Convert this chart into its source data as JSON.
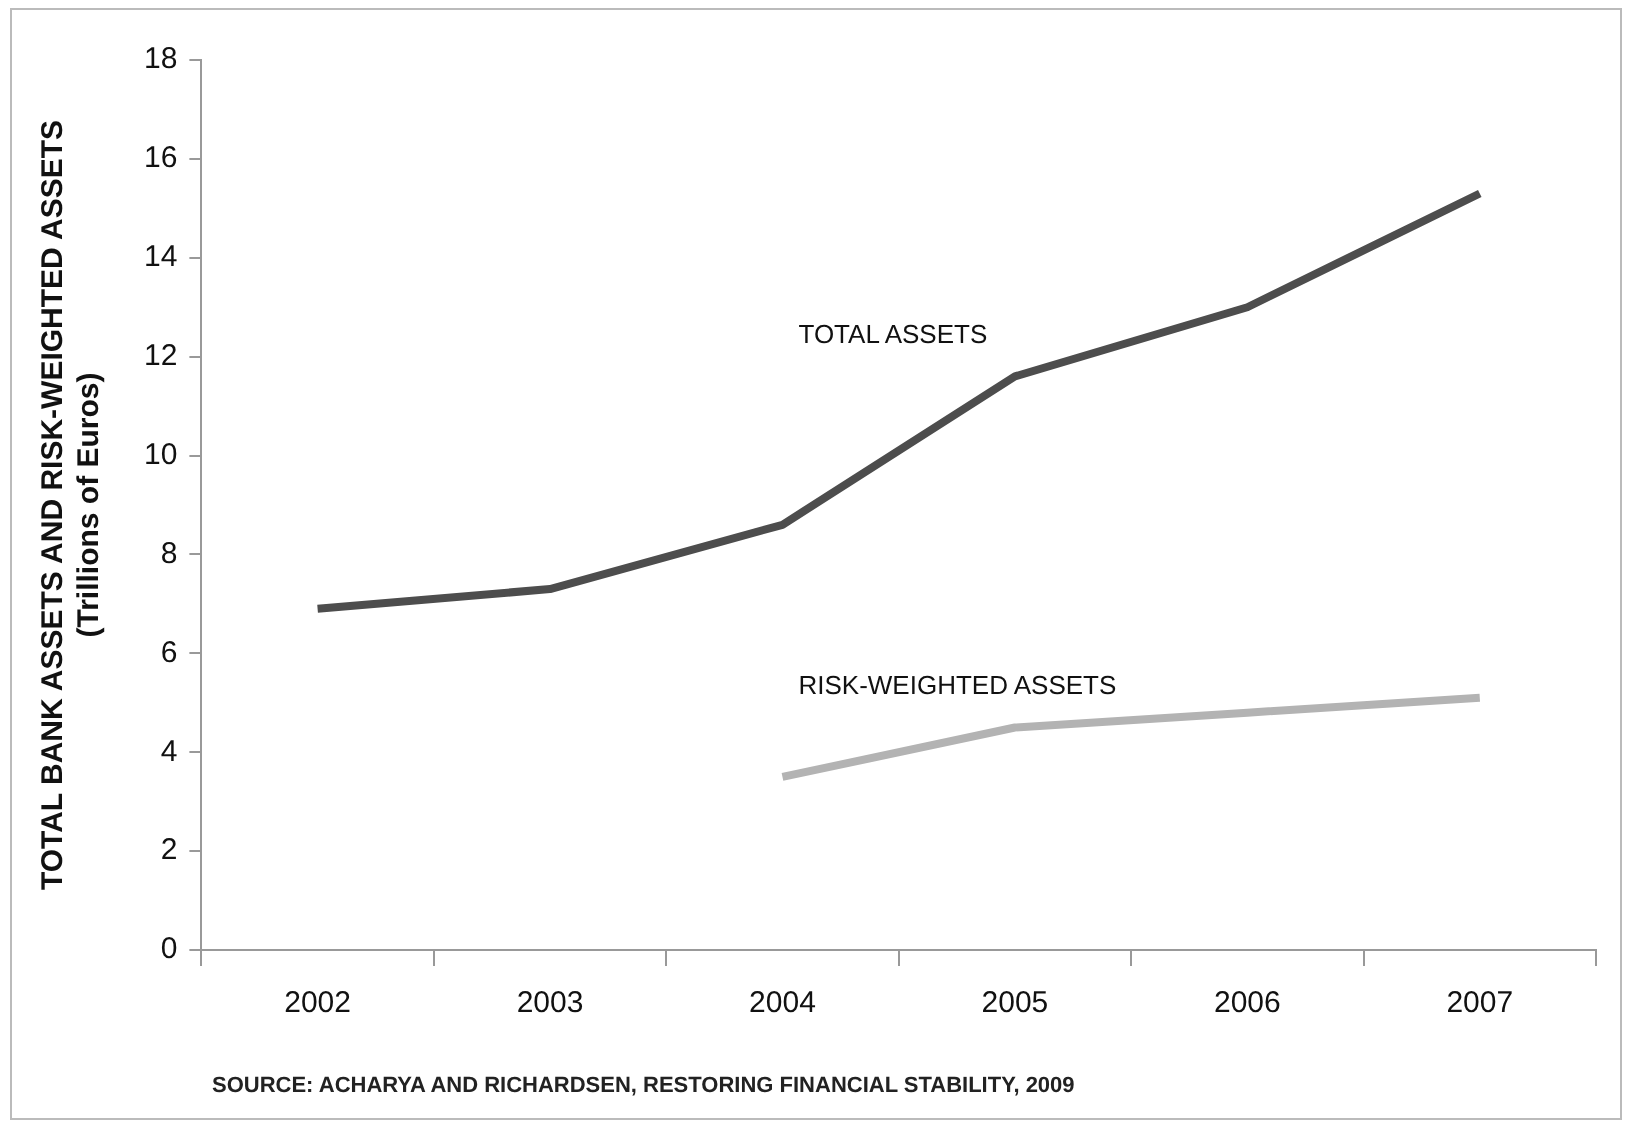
{
  "chart_data": {
    "type": "line",
    "ylabel": "TOTAL BANK ASSETS AND RISK-WEIGHTED ASSETS\n(Trillions of Euros)",
    "categories": [
      "2002",
      "2003",
      "2004",
      "2005",
      "2006",
      "2007"
    ],
    "series": [
      {
        "name": "TOTAL ASSETS",
        "color": "#4d4d4d",
        "values": [
          6.9,
          7.3,
          8.6,
          11.6,
          13.0,
          15.3
        ]
      },
      {
        "name": "RISK-WEIGHTED ASSETS",
        "color": "#b3b3b3",
        "values": [
          null,
          null,
          3.5,
          4.5,
          4.8,
          5.1
        ]
      }
    ],
    "ylim": [
      0,
      18
    ],
    "yticks": [
      0,
      2,
      4,
      6,
      8,
      10,
      12,
      14,
      16,
      18
    ],
    "grid": false,
    "legend": false,
    "marker": "none",
    "line_style": "solid",
    "annotations": [
      "SOURCE: ACHARYA AND RICHARDSEN, RESTORING FINANCIAL STABILITY, 2009"
    ]
  }
}
